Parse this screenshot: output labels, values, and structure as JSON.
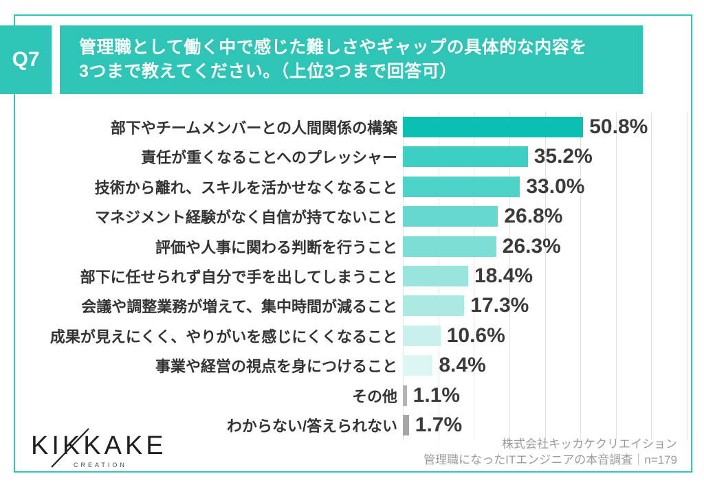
{
  "header": {
    "badge": "Q7",
    "title_line1": "管理職として働く中で感じた難しさやギャップの具体的な内容を",
    "title_line2": "3つまで教えてください。（上位3つまで回答可）"
  },
  "chart_data": {
    "type": "bar",
    "orientation": "horizontal",
    "categories": [
      "部下やチームメンバーとの人間関係の構築",
      "責任が重くなることへのプレッシャー",
      "技術から離れ、スキルを活かせなくなること",
      "マネジメント経験がなく自信が持てないこと",
      "評価や人事に関わる判断を行うこと",
      "部下に任せられず自分で手を出してしまうこと",
      "会議や調整業務が増えて、集中時間が減ること",
      "成果が見えにくく、やりがいを感じにくくなること",
      "事業や経営の視点を身につけること",
      "その他",
      "わからない/答えられない"
    ],
    "values": [
      50.8,
      35.2,
      33.0,
      26.8,
      26.3,
      18.4,
      17.3,
      10.6,
      8.4,
      1.1,
      1.7
    ],
    "value_labels": [
      "50.8%",
      "35.2%",
      "33.0%",
      "26.8%",
      "26.3%",
      "18.4%",
      "17.3%",
      "10.6%",
      "8.4%",
      "1.1%",
      "1.7%"
    ],
    "bar_colors": [
      "#0bc0b2",
      "#3ecfc4",
      "#4ed3c9",
      "#66d8cf",
      "#7cded5",
      "#99e5de",
      "#ace9e3",
      "#c9f0ec",
      "#def6f3",
      "#b3b3b3",
      "#a6a6a6"
    ],
    "xlim": [
      0,
      80
    ],
    "gridline_step": 10,
    "grid": true,
    "legend": false,
    "title": "管理職として働く中で感じた難しさやギャップの具体的な内容を3つまで教えてください。（上位3つまで回答可）"
  },
  "footer": {
    "logo_text": "KIKKAKE",
    "logo_subtext": "CREATION",
    "attribution_line1": "株式会社キッカケクリエイション",
    "attribution_line2": "管理職になったITエンジニアの本音調査｜n=179"
  },
  "colors": {
    "accent": "#2ec4b6",
    "bar_primary": "#0bc0b2",
    "bar_neutral": "#b3b3b3",
    "gridline": "#e1e1e1",
    "label_text": "#333333",
    "attribution_text": "#9b9b9b"
  }
}
